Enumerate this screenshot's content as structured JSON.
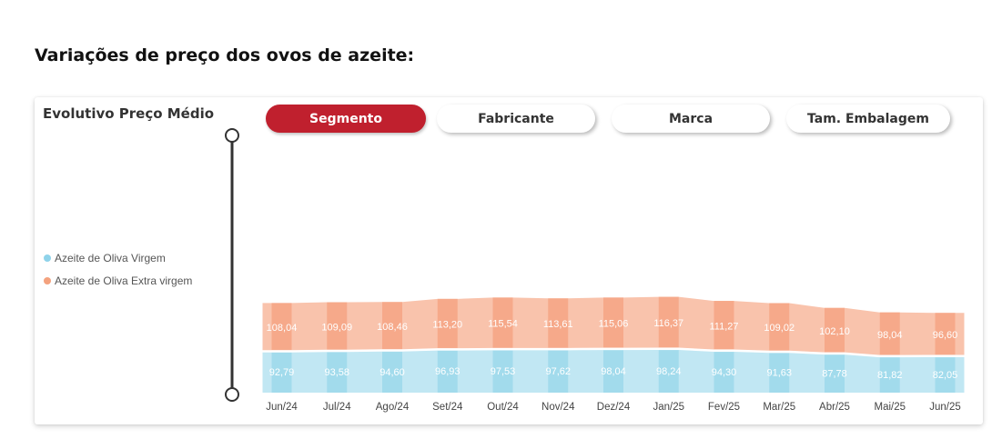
{
  "page": {
    "heading": "Variações de preço dos ovos de azeite:"
  },
  "card": {
    "title": "Evolutivo Preço Médio"
  },
  "tabs": [
    {
      "label": "Segmento",
      "active": true
    },
    {
      "label": "Fabricante",
      "active": false
    },
    {
      "label": "Marca",
      "active": false
    },
    {
      "label": "Tam. Embalagem",
      "active": false
    }
  ],
  "legend": [
    {
      "label": "Azeite de Oliva Virgem",
      "color": "#8fd3ea"
    },
    {
      "label": "Azeite de Oliva Extra virgem",
      "color": "#f4a27e"
    }
  ],
  "colors": {
    "virgem_band": "#c1e7f3",
    "virgem_bar": "#a2dbec",
    "extra_band": "#f9c3ac",
    "extra_bar": "#f6a98a",
    "active_tab": "#c0202e"
  },
  "chart_data": {
    "type": "bar",
    "stacked": true,
    "categories": [
      "Jun/24",
      "Jul/24",
      "Ago/24",
      "Set/24",
      "Out/24",
      "Nov/24",
      "Dez/24",
      "Jan/25",
      "Fev/25",
      "Mar/25",
      "Abr/25",
      "Mai/25",
      "Jun/25"
    ],
    "series": [
      {
        "name": "Azeite de Oliva Virgem",
        "values": [
          92.79,
          93.58,
          94.6,
          96.93,
          97.53,
          97.62,
          98.04,
          98.24,
          94.3,
          91.63,
          87.78,
          81.82,
          82.05
        ],
        "labels": [
          "92,79",
          "93,58",
          "94,60",
          "96,93",
          "97,53",
          "97,62",
          "98,04",
          "98,24",
          "94,30",
          "91,63",
          "87,78",
          "81,82",
          "82,05"
        ]
      },
      {
        "name": "Azeite de Oliva Extra virgem",
        "values": [
          108.04,
          109.09,
          108.46,
          113.2,
          115.54,
          113.61,
          115.06,
          116.37,
          111.27,
          109.02,
          102.1,
          98.04,
          96.6
        ],
        "labels": [
          "108,04",
          "109,09",
          "108,46",
          "113,20",
          "115,54",
          "113,61",
          "115,06",
          "116,37",
          "111,27",
          "109,02",
          "102,10",
          "98,04",
          "96,60"
        ]
      }
    ],
    "grid": false,
    "legend_position": "left",
    "ribbon": true
  }
}
